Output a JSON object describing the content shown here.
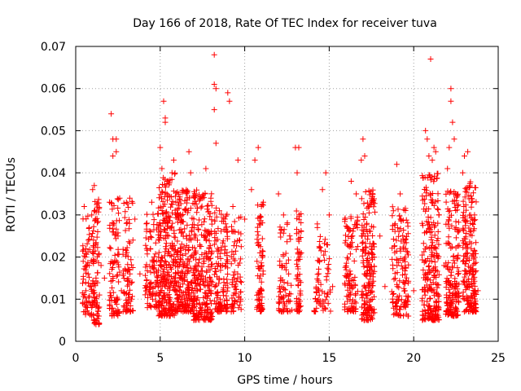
{
  "chart_data": {
    "type": "scatter",
    "title": "Day 166 of 2018, Rate Of TEC Index for receiver tuva",
    "xlabel": "GPS time / hours",
    "ylabel": "ROTI / TECUs",
    "xlim": [
      0,
      25
    ],
    "ylim": [
      0,
      0.07
    ],
    "xticks": [
      0,
      5,
      10,
      15,
      20,
      25
    ],
    "yticks": [
      0,
      0.01,
      0.02,
      0.03,
      0.04,
      0.05,
      0.06,
      0.07
    ],
    "xtick_labels": [
      "0",
      "5",
      "10",
      "15",
      "20",
      "25"
    ],
    "ytick_labels": [
      "0",
      "0.01",
      "0.02",
      "0.03",
      "0.04",
      "0.05",
      "0.06",
      "0.07"
    ],
    "grid": true,
    "marker": "+",
    "color": "#ff0000",
    "series": [
      {
        "name": "ROTI",
        "points": [
          [
            0.5,
            0.032
          ],
          [
            0.6,
            0.022
          ],
          [
            0.6,
            0.012
          ],
          [
            0.7,
            0.008
          ],
          [
            0.8,
            0.018
          ],
          [
            0.8,
            0.027
          ],
          [
            0.9,
            0.013
          ],
          [
            1.0,
            0.036
          ],
          [
            1.0,
            0.021
          ],
          [
            1.1,
            0.037
          ],
          [
            1.1,
            0.005
          ],
          [
            1.2,
            0.004
          ],
          [
            1.2,
            0.015
          ],
          [
            1.3,
            0.026
          ],
          [
            1.4,
            0.011
          ],
          [
            1.5,
            0.018
          ],
          [
            1.7,
            0.015
          ],
          [
            2.0,
            0.033
          ],
          [
            2.1,
            0.054
          ],
          [
            2.2,
            0.048
          ],
          [
            2.2,
            0.044
          ],
          [
            2.3,
            0.019
          ],
          [
            2.4,
            0.048
          ],
          [
            2.4,
            0.045
          ],
          [
            2.5,
            0.025
          ],
          [
            2.6,
            0.034
          ],
          [
            2.7,
            0.012
          ],
          [
            3.0,
            0.028
          ],
          [
            3.1,
            0.017
          ],
          [
            3.2,
            0.034
          ],
          [
            3.3,
            0.01
          ],
          [
            3.5,
            0.029
          ],
          [
            3.8,
            0.016
          ],
          [
            4.2,
            0.022
          ],
          [
            4.5,
            0.033
          ],
          [
            4.7,
            0.013
          ],
          [
            4.9,
            0.02
          ],
          [
            5.0,
            0.046
          ],
          [
            5.1,
            0.041
          ],
          [
            5.2,
            0.057
          ],
          [
            5.3,
            0.053
          ],
          [
            5.3,
            0.052
          ],
          [
            5.4,
            0.035
          ],
          [
            5.5,
            0.025
          ],
          [
            5.7,
            0.04
          ],
          [
            5.8,
            0.043
          ],
          [
            5.9,
            0.015
          ],
          [
            6.0,
            0.03
          ],
          [
            6.2,
            0.022
          ],
          [
            6.5,
            0.031
          ],
          [
            6.7,
            0.045
          ],
          [
            6.8,
            0.04
          ],
          [
            7.0,
            0.017
          ],
          [
            7.2,
            0.024
          ],
          [
            7.5,
            0.034
          ],
          [
            7.7,
            0.041
          ],
          [
            7.9,
            0.022
          ],
          [
            8.0,
            0.012
          ],
          [
            8.2,
            0.068
          ],
          [
            8.2,
            0.061
          ],
          [
            8.3,
            0.06
          ],
          [
            8.2,
            0.055
          ],
          [
            8.3,
            0.047
          ],
          [
            8.5,
            0.031
          ],
          [
            8.7,
            0.018
          ],
          [
            9.0,
            0.059
          ],
          [
            9.1,
            0.057
          ],
          [
            9.3,
            0.032
          ],
          [
            9.6,
            0.043
          ],
          [
            9.8,
            0.014
          ],
          [
            10.0,
            0.029
          ],
          [
            10.4,
            0.036
          ],
          [
            10.6,
            0.043
          ],
          [
            10.8,
            0.046
          ],
          [
            10.9,
            0.021
          ],
          [
            11.0,
            0.009
          ],
          [
            11.1,
            0.033
          ],
          [
            12.0,
            0.035
          ],
          [
            12.3,
            0.03
          ],
          [
            12.6,
            0.016
          ],
          [
            13.0,
            0.046
          ],
          [
            13.1,
            0.04
          ],
          [
            13.2,
            0.046
          ],
          [
            13.3,
            0.011
          ],
          [
            14.3,
            0.027
          ],
          [
            14.6,
            0.036
          ],
          [
            14.8,
            0.04
          ],
          [
            15.0,
            0.03
          ],
          [
            15.2,
            0.013
          ],
          [
            16.0,
            0.017
          ],
          [
            16.3,
            0.038
          ],
          [
            16.6,
            0.035
          ],
          [
            16.9,
            0.043
          ],
          [
            17.0,
            0.048
          ],
          [
            17.1,
            0.044
          ],
          [
            17.3,
            0.021
          ],
          [
            17.6,
            0.033
          ],
          [
            18.0,
            0.025
          ],
          [
            18.3,
            0.013
          ],
          [
            18.8,
            0.031
          ],
          [
            19.0,
            0.042
          ],
          [
            19.2,
            0.035
          ],
          [
            19.5,
            0.02
          ],
          [
            20.0,
            0.012
          ],
          [
            20.5,
            0.028
          ],
          [
            20.7,
            0.05
          ],
          [
            20.8,
            0.048
          ],
          [
            20.9,
            0.044
          ],
          [
            21.0,
            0.067
          ],
          [
            21.1,
            0.043
          ],
          [
            21.2,
            0.046
          ],
          [
            21.3,
            0.045
          ],
          [
            21.5,
            0.03
          ],
          [
            21.8,
            0.018
          ],
          [
            22.0,
            0.041
          ],
          [
            22.1,
            0.046
          ],
          [
            22.2,
            0.06
          ],
          [
            22.2,
            0.057
          ],
          [
            22.3,
            0.052
          ],
          [
            22.4,
            0.048
          ],
          [
            22.6,
            0.026
          ],
          [
            22.9,
            0.04
          ],
          [
            23.0,
            0.044
          ],
          [
            23.2,
            0.045
          ],
          [
            23.4,
            0.022
          ],
          [
            23.6,
            0.03
          ],
          [
            23.8,
            0.012
          ]
        ],
        "clusters": [
          {
            "x_center": 0.7,
            "x_spread": 0.3,
            "y_min": 0.006,
            "y_max": 0.03,
            "count": 70
          },
          {
            "x_center": 1.2,
            "x_spread": 0.2,
            "y_min": 0.004,
            "y_max": 0.034,
            "count": 90
          },
          {
            "x_center": 2.3,
            "x_spread": 0.3,
            "y_min": 0.006,
            "y_max": 0.034,
            "count": 90
          },
          {
            "x_center": 3.1,
            "x_spread": 0.3,
            "y_min": 0.007,
            "y_max": 0.034,
            "count": 80
          },
          {
            "x_center": 4.5,
            "x_spread": 0.4,
            "y_min": 0.008,
            "y_max": 0.032,
            "count": 100
          },
          {
            "x_center": 5.4,
            "x_spread": 0.5,
            "y_min": 0.006,
            "y_max": 0.04,
            "count": 260
          },
          {
            "x_center": 6.4,
            "x_spread": 0.5,
            "y_min": 0.007,
            "y_max": 0.036,
            "count": 230
          },
          {
            "x_center": 7.5,
            "x_spread": 0.6,
            "y_min": 0.005,
            "y_max": 0.036,
            "count": 270
          },
          {
            "x_center": 8.6,
            "x_spread": 0.4,
            "y_min": 0.007,
            "y_max": 0.032,
            "count": 130
          },
          {
            "x_center": 9.5,
            "x_spread": 0.3,
            "y_min": 0.007,
            "y_max": 0.03,
            "count": 70
          },
          {
            "x_center": 10.9,
            "x_spread": 0.2,
            "y_min": 0.007,
            "y_max": 0.033,
            "count": 80
          },
          {
            "x_center": 12.4,
            "x_spread": 0.4,
            "y_min": 0.007,
            "y_max": 0.03,
            "count": 70
          },
          {
            "x_center": 13.2,
            "x_spread": 0.15,
            "y_min": 0.007,
            "y_max": 0.032,
            "count": 60
          },
          {
            "x_center": 14.6,
            "x_spread": 0.5,
            "y_min": 0.007,
            "y_max": 0.028,
            "count": 70
          },
          {
            "x_center": 16.3,
            "x_spread": 0.4,
            "y_min": 0.007,
            "y_max": 0.03,
            "count": 110
          },
          {
            "x_center": 17.3,
            "x_spread": 0.4,
            "y_min": 0.005,
            "y_max": 0.036,
            "count": 190
          },
          {
            "x_center": 19.2,
            "x_spread": 0.5,
            "y_min": 0.006,
            "y_max": 0.032,
            "count": 140
          },
          {
            "x_center": 21.0,
            "x_spread": 0.5,
            "y_min": 0.005,
            "y_max": 0.04,
            "count": 240
          },
          {
            "x_center": 22.3,
            "x_spread": 0.4,
            "y_min": 0.006,
            "y_max": 0.036,
            "count": 180
          },
          {
            "x_center": 23.3,
            "x_spread": 0.4,
            "y_min": 0.007,
            "y_max": 0.038,
            "count": 200
          }
        ]
      }
    ]
  }
}
